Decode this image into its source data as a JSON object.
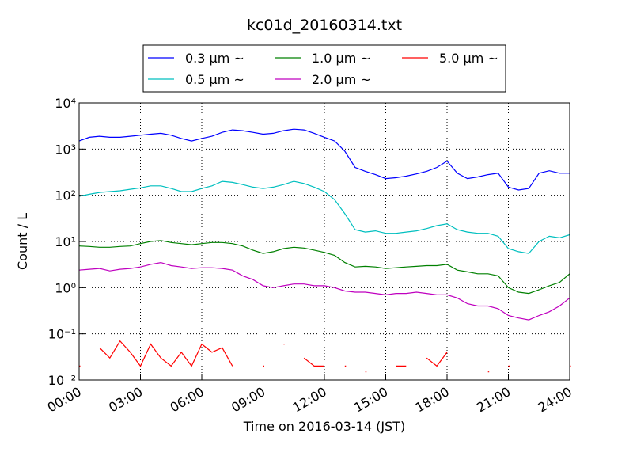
{
  "chart_data": {
    "type": "line",
    "title": "kc01d_20160314.txt",
    "x_label": "Time on 2016-03-14 (JST)",
    "y_label": "Count / L",
    "log_y": true,
    "grid": true,
    "legend": "upper center",
    "x": [
      0,
      0.5,
      1,
      1.5,
      2,
      2.5,
      3,
      3.5,
      4,
      4.5,
      5,
      5.5,
      6,
      6.5,
      7,
      7.5,
      8,
      8.5,
      9,
      9.5,
      10,
      10.5,
      11,
      11.5,
      12,
      12.5,
      13,
      13.5,
      14,
      14.5,
      15,
      15.5,
      16,
      16.5,
      17,
      17.5,
      18,
      18.5,
      19,
      19.5,
      20,
      20.5,
      21,
      21.5,
      22,
      22.5,
      23,
      23.5,
      24
    ],
    "xlim": [
      0,
      24
    ],
    "xticks": [
      {
        "value": 0,
        "label": "00:00"
      },
      {
        "value": 3,
        "label": "03:00"
      },
      {
        "value": 6,
        "label": "06:00"
      },
      {
        "value": 9,
        "label": "09:00"
      },
      {
        "value": 12,
        "label": "12:00"
      },
      {
        "value": 15,
        "label": "15:00"
      },
      {
        "value": 18,
        "label": "18:00"
      },
      {
        "value": 21,
        "label": "21:00"
      },
      {
        "value": 24,
        "label": "24:00"
      }
    ],
    "ylim": [
      0.01,
      10000
    ],
    "yticks": [
      {
        "value": 0.01,
        "label": "10⁻²"
      },
      {
        "value": 0.1,
        "label": "10⁻¹"
      },
      {
        "value": 1,
        "label": "10⁰"
      },
      {
        "value": 10,
        "label": "10¹"
      },
      {
        "value": 100,
        "label": "10²"
      },
      {
        "value": 1000,
        "label": "10³"
      },
      {
        "value": 10000,
        "label": "10⁴"
      }
    ],
    "series": [
      {
        "name": "0.3 μm ~",
        "color": "#0000ff",
        "values": [
          1500,
          1800,
          1900,
          1800,
          1800,
          1900,
          2000,
          2100,
          2200,
          2000,
          1700,
          1500,
          1700,
          1900,
          2300,
          2600,
          2500,
          2300,
          2100,
          2200,
          2500,
          2700,
          2600,
          2200,
          1800,
          1500,
          900,
          400,
          330,
          280,
          230,
          240,
          260,
          290,
          330,
          400,
          550,
          300,
          230,
          250,
          280,
          300,
          150,
          130,
          140,
          300,
          340,
          300,
          300
        ]
      },
      {
        "name": "0.5 μm ~",
        "color": "#00bfbf",
        "values": [
          95,
          105,
          115,
          120,
          125,
          135,
          145,
          160,
          160,
          140,
          120,
          120,
          140,
          160,
          200,
          190,
          170,
          150,
          140,
          150,
          170,
          200,
          180,
          150,
          120,
          80,
          40,
          18,
          16,
          17,
          15,
          15,
          16,
          17,
          19,
          22,
          24,
          18,
          16,
          15,
          15,
          13,
          7,
          6,
          5.5,
          10,
          13,
          12,
          14
        ]
      },
      {
        "name": "1.0 μm ~",
        "color": "#008000",
        "values": [
          8,
          7.8,
          7.5,
          7.5,
          7.8,
          8,
          9,
          10,
          10.5,
          9.5,
          9,
          8.5,
          9,
          9.5,
          9.5,
          9,
          8,
          6.5,
          5.5,
          6,
          7,
          7.5,
          7.2,
          6.5,
          5.8,
          5,
          3.5,
          2.8,
          2.9,
          2.8,
          2.6,
          2.7,
          2.8,
          2.9,
          3,
          3,
          3.2,
          2.4,
          2.2,
          2,
          2,
          1.8,
          1,
          0.8,
          0.75,
          0.9,
          1.1,
          1.3,
          2
        ]
      },
      {
        "name": "2.0 μm ~",
        "color": "#bf00bf",
        "values": [
          2.4,
          2.5,
          2.6,
          2.3,
          2.5,
          2.6,
          2.8,
          3.2,
          3.5,
          3,
          2.8,
          2.6,
          2.7,
          2.7,
          2.6,
          2.4,
          1.8,
          1.5,
          1.1,
          1,
          1.1,
          1.2,
          1.2,
          1.1,
          1.1,
          1,
          0.85,
          0.8,
          0.8,
          0.75,
          0.7,
          0.75,
          0.75,
          0.8,
          0.75,
          0.7,
          0.7,
          0.6,
          0.45,
          0.4,
          0.4,
          0.35,
          0.25,
          0.22,
          0.2,
          0.25,
          0.3,
          0.4,
          0.6
        ]
      },
      {
        "name": "5.0 μm ~",
        "color": "#ff0000",
        "values": [
          0.02,
          null,
          0.05,
          0.03,
          0.07,
          0.04,
          0.02,
          0.06,
          0.03,
          0.02,
          0.04,
          0.02,
          0.06,
          0.04,
          0.05,
          0.02,
          null,
          null,
          0.02,
          null,
          0.06,
          null,
          0.03,
          0.02,
          0.02,
          null,
          0.02,
          null,
          0.015,
          null,
          null,
          0.02,
          0.02,
          null,
          0.03,
          0.02,
          0.04,
          null,
          null,
          null,
          0.015,
          null,
          0.02,
          null,
          null,
          null,
          null,
          null,
          0.02
        ]
      }
    ]
  }
}
